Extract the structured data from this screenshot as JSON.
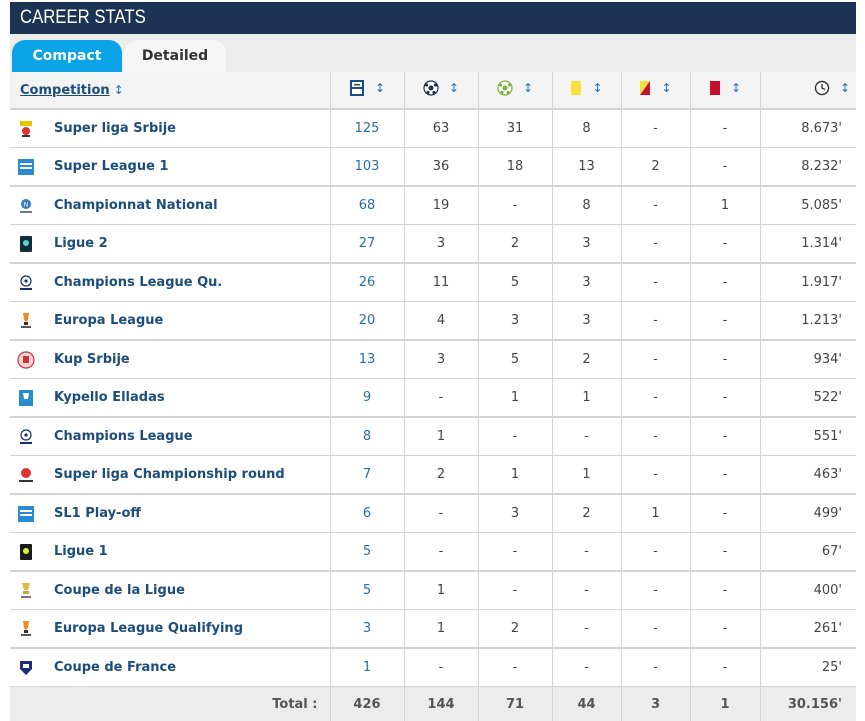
{
  "header": {
    "title": "CAREER STATS"
  },
  "tabs": [
    {
      "label": "Compact",
      "active": true
    },
    {
      "label": "Detailed",
      "active": false
    }
  ],
  "columns": {
    "competition": "Competition",
    "icons": [
      "appearances-icon",
      "goals-icon",
      "assists-icon",
      "yellow-card-icon",
      "second-yellow-icon",
      "red-card-icon",
      "minutes-icon"
    ]
  },
  "rows": [
    {
      "competition": "Super liga Srbije",
      "logo": "super-liga-srbije-logo",
      "apps": "125",
      "goals": "63",
      "assists": "31",
      "yellow": "8",
      "second_yellow": "-",
      "red": "-",
      "minutes": "8.673'"
    },
    {
      "competition": "Super League 1",
      "logo": "super-league-1-logo",
      "apps": "103",
      "goals": "36",
      "assists": "18",
      "yellow": "13",
      "second_yellow": "2",
      "red": "-",
      "minutes": "8.232'"
    },
    {
      "competition": "Championnat National",
      "logo": "championnat-national-logo",
      "apps": "68",
      "goals": "19",
      "assists": "-",
      "yellow": "8",
      "second_yellow": "-",
      "red": "1",
      "minutes": "5.085'"
    },
    {
      "competition": "Ligue 2",
      "logo": "ligue-2-logo",
      "apps": "27",
      "goals": "3",
      "assists": "2",
      "yellow": "3",
      "second_yellow": "-",
      "red": "-",
      "minutes": "1.314'"
    },
    {
      "competition": "Champions League Qu.",
      "logo": "champions-league-logo",
      "apps": "26",
      "goals": "11",
      "assists": "5",
      "yellow": "3",
      "second_yellow": "-",
      "red": "-",
      "minutes": "1.917'"
    },
    {
      "competition": "Europa League",
      "logo": "europa-league-logo",
      "apps": "20",
      "goals": "4",
      "assists": "3",
      "yellow": "3",
      "second_yellow": "-",
      "red": "-",
      "minutes": "1.213'"
    },
    {
      "competition": "Kup Srbije",
      "logo": "kup-srbije-logo",
      "apps": "13",
      "goals": "3",
      "assists": "5",
      "yellow": "2",
      "second_yellow": "-",
      "red": "-",
      "minutes": "934'"
    },
    {
      "competition": "Kypello Elladas",
      "logo": "kypello-elladas-logo",
      "apps": "9",
      "goals": "-",
      "assists": "1",
      "yellow": "1",
      "second_yellow": "-",
      "red": "-",
      "minutes": "522'"
    },
    {
      "competition": "Champions League",
      "logo": "champions-league-logo",
      "apps": "8",
      "goals": "1",
      "assists": "-",
      "yellow": "-",
      "second_yellow": "-",
      "red": "-",
      "minutes": "551'"
    },
    {
      "competition": "Super liga Championship round",
      "logo": "super-liga-logo",
      "apps": "7",
      "goals": "2",
      "assists": "1",
      "yellow": "1",
      "second_yellow": "-",
      "red": "-",
      "minutes": "463'"
    },
    {
      "competition": "SL1 Play-off",
      "logo": "super-league-1-logo",
      "apps": "6",
      "goals": "-",
      "assists": "3",
      "yellow": "2",
      "second_yellow": "1",
      "red": "-",
      "minutes": "499'"
    },
    {
      "competition": "Ligue 1",
      "logo": "ligue-1-logo",
      "apps": "5",
      "goals": "-",
      "assists": "-",
      "yellow": "-",
      "second_yellow": "-",
      "red": "-",
      "minutes": "67'"
    },
    {
      "competition": "Coupe de la Ligue",
      "logo": "coupe-de-la-ligue-logo",
      "apps": "5",
      "goals": "1",
      "assists": "-",
      "yellow": "-",
      "second_yellow": "-",
      "red": "-",
      "minutes": "400'"
    },
    {
      "competition": "Europa League Qualifying",
      "logo": "europa-league-logo",
      "apps": "3",
      "goals": "1",
      "assists": "2",
      "yellow": "-",
      "second_yellow": "-",
      "red": "-",
      "minutes": "261'"
    },
    {
      "competition": "Coupe de France",
      "logo": "coupe-de-france-logo",
      "apps": "1",
      "goals": "-",
      "assists": "-",
      "yellow": "-",
      "second_yellow": "-",
      "red": "-",
      "minutes": "25'"
    }
  ],
  "totals": {
    "label": "Total :",
    "apps": "426",
    "goals": "144",
    "assists": "71",
    "yellow": "44",
    "second_yellow": "3",
    "red": "1",
    "minutes": "30.156'"
  },
  "colors": {
    "title_bg": "#1c3353",
    "tab_active": "#0aa3e6",
    "link": "#1c4d7b",
    "yellow_card": "#f7e03a",
    "red_card": "#c8102e"
  }
}
